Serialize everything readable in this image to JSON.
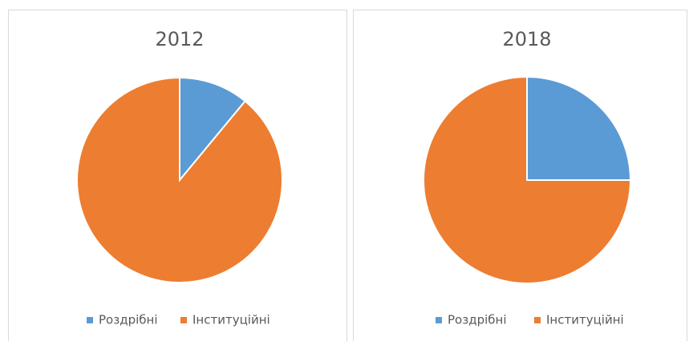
{
  "chart_data": [
    {
      "type": "pie",
      "title": "2012",
      "categories": [
        "Роздрібні",
        "Інституційні"
      ],
      "values": [
        11,
        89
      ],
      "colors": [
        "#5b9bd5",
        "#ed7d31"
      ]
    },
    {
      "type": "pie",
      "title": "2018",
      "categories": [
        "Роздрібні",
        "Інституційні"
      ],
      "values": [
        25,
        75
      ],
      "colors": [
        "#5b9bd5",
        "#ed7d31"
      ]
    }
  ]
}
